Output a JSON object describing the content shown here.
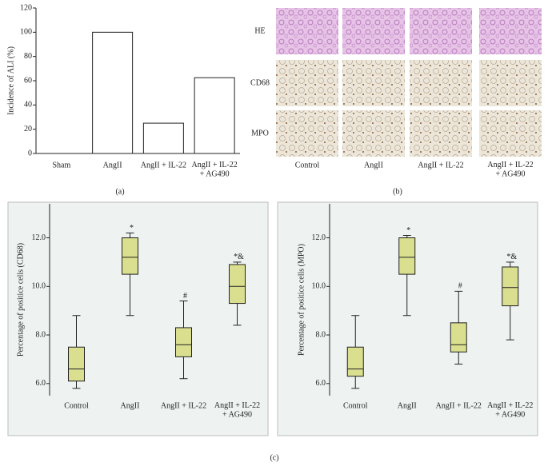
{
  "panel_labels": [
    "(a)",
    "(b)",
    "(c)"
  ],
  "panel_b": {
    "row_labels": [
      "HE",
      "CD68",
      "MPO"
    ],
    "column_labels": [
      "Control",
      "AngII",
      "AngII + IL-22",
      "AngII + IL-22\n+ AG490"
    ]
  },
  "chart_data": [
    {
      "type": "bar",
      "y_label": "Incidence of ALI (%)",
      "categories": [
        "Sham",
        "AngII",
        "AngII + IL-22",
        "AngII + IL-22\n+ AG490"
      ],
      "values": [
        0,
        100,
        25,
        62.5
      ],
      "color": "#ffffff",
      "ylim": [
        0,
        120
      ],
      "yticks": [
        0,
        20,
        40,
        60,
        80,
        100,
        120
      ],
      "grid": false
    },
    {
      "type": "box",
      "y_label": "Percentage of positice cells (CD68)",
      "categories": [
        "Control",
        "AngII",
        "AngII + IL-22",
        "AngII + IL-22\n+ AG490"
      ],
      "min": [
        5.8,
        8.8,
        6.2,
        8.4
      ],
      "q1": [
        6.1,
        10.5,
        7.1,
        9.3
      ],
      "median": [
        6.6,
        11.2,
        7.6,
        10.0
      ],
      "q3": [
        7.5,
        12.0,
        8.3,
        10.9
      ],
      "max": [
        8.8,
        12.2,
        9.4,
        11.0
      ],
      "annotations": [
        null,
        "*",
        "#",
        "*&"
      ],
      "color": "#d9df8e",
      "ylim": [
        5.5,
        13.4
      ],
      "yticks": [
        {
          "value": 6,
          "label": "6.0"
        },
        {
          "value": 8,
          "label": "8.0"
        },
        {
          "value": 10,
          "label": "10.0"
        },
        {
          "value": 12,
          "label": "12.0"
        }
      ],
      "grid": false
    },
    {
      "type": "box",
      "y_label": "Percentage of positice cells (MPO)",
      "categories": [
        "Control",
        "AngII",
        "AngII + IL-22",
        "AngII + IL-22\n+ AG490"
      ],
      "min": [
        5.8,
        8.8,
        6.8,
        7.8
      ],
      "q1": [
        6.3,
        10.5,
        7.3,
        9.2
      ],
      "median": [
        6.6,
        11.2,
        7.6,
        9.95
      ],
      "q3": [
        7.5,
        12.0,
        8.5,
        10.8
      ],
      "max": [
        8.8,
        12.1,
        9.8,
        11.0
      ],
      "annotations": [
        null,
        "*",
        "#",
        "*&"
      ],
      "color": "#d9df8e",
      "ylim": [
        5.5,
        13.4
      ],
      "yticks": [
        {
          "value": 6,
          "label": "6.0"
        },
        {
          "value": 8,
          "label": "8.0"
        },
        {
          "value": 10,
          "label": "10.0"
        },
        {
          "value": 12,
          "label": "12.0"
        }
      ],
      "grid": false
    }
  ]
}
